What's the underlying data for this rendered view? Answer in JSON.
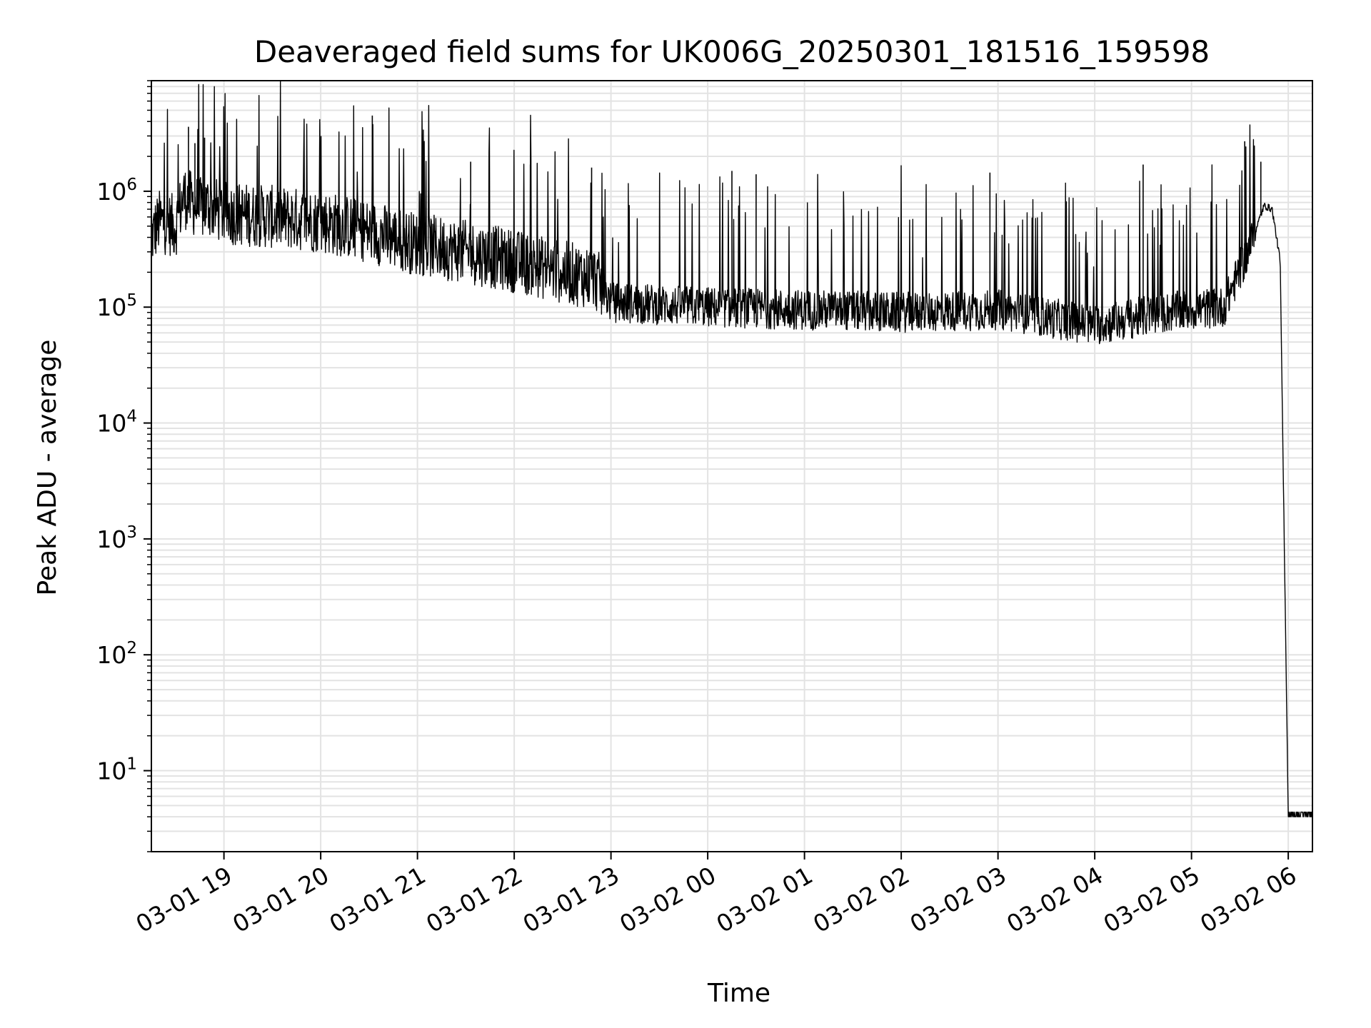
{
  "chart_data": {
    "type": "line",
    "title": "Deaveraged field sums for UK006G_20250301_181516_159598",
    "xlabel": "Time",
    "ylabel": "Peak ADU - average",
    "y_scale": "log",
    "ylim": [
      2,
      9000000
    ],
    "xlim": [
      "2025-03-01 18:15",
      "2025-03-02 06:15"
    ],
    "x_ticks": [
      "03-01 19",
      "03-01 20",
      "03-01 21",
      "03-01 22",
      "03-01 23",
      "03-02 00",
      "03-02 01",
      "03-02 02",
      "03-02 03",
      "03-02 04",
      "03-02 05",
      "03-02 06"
    ],
    "y_ticks": [
      {
        "base": "10",
        "exp": "1"
      },
      {
        "base": "10",
        "exp": "2"
      },
      {
        "base": "10",
        "exp": "3"
      },
      {
        "base": "10",
        "exp": "4"
      },
      {
        "base": "10",
        "exp": "5"
      },
      {
        "base": "10",
        "exp": "6"
      }
    ],
    "grid": true,
    "line_color": "#000000",
    "grid_color": "#e3e3e3",
    "series": [
      {
        "x": [
          "2025-03-01 18:15",
          "2025-03-01 18:20",
          "2025-03-01 18:30",
          "2025-03-01 18:35",
          "2025-03-01 18:45",
          "2025-03-01 18:50",
          "2025-03-01 19:00",
          "2025-03-01 19:30",
          "2025-03-01 20:00",
          "2025-03-01 20:30",
          "2025-03-01 21:00",
          "2025-03-01 21:30",
          "2025-03-01 22:00",
          "2025-03-01 22:30",
          "2025-03-01 22:50",
          "2025-03-01 23:00",
          "2025-03-02 00:00",
          "2025-03-02 01:00",
          "2025-03-02 02:00",
          "2025-03-02 03:00",
          "2025-03-02 04:00",
          "2025-03-02 04:45",
          "2025-03-02 05:00",
          "2025-03-02 05:20",
          "2025-03-02 05:35",
          "2025-03-02 05:45",
          "2025-03-02 05:50",
          "2025-03-02 05:55",
          "2025-03-02 06:00",
          "2025-03-02 06:15"
        ],
        "values": [
          400000,
          550000,
          500000,
          900000,
          700000,
          750000,
          650000,
          600000,
          550000,
          450000,
          350000,
          300000,
          250000,
          200000,
          180000,
          110000,
          100000,
          95000,
          90000,
          95000,
          70000,
          90000,
          95000,
          100000,
          300000,
          750000,
          700000,
          250000,
          4,
          4
        ]
      }
    ],
    "spikes": [
      {
        "x": "2025-03-01 18:38",
        "value": 3600000
      },
      {
        "x": "2025-03-01 18:42",
        "value": 2600000
      },
      {
        "x": "2025-03-01 18:48",
        "value": 2900000
      },
      {
        "x": "2025-03-01 20:32",
        "value": 4500000
      },
      {
        "x": "2025-03-01 21:33",
        "value": 1800000
      },
      {
        "x": "2025-03-01 22:10",
        "value": 1700000
      },
      {
        "x": "2025-03-01 22:48",
        "value": 1600000
      },
      {
        "x": "2025-03-02 00:15",
        "value": 1500000
      },
      {
        "x": "2025-03-02 00:30",
        "value": 1400000
      },
      {
        "x": "2025-03-02 02:55",
        "value": 1450000
      },
      {
        "x": "2025-03-02 04:30",
        "value": 1700000
      },
      {
        "x": "2025-03-02 05:33",
        "value": 2700000
      },
      {
        "x": "2025-03-02 05:43",
        "value": 1800000
      }
    ]
  }
}
